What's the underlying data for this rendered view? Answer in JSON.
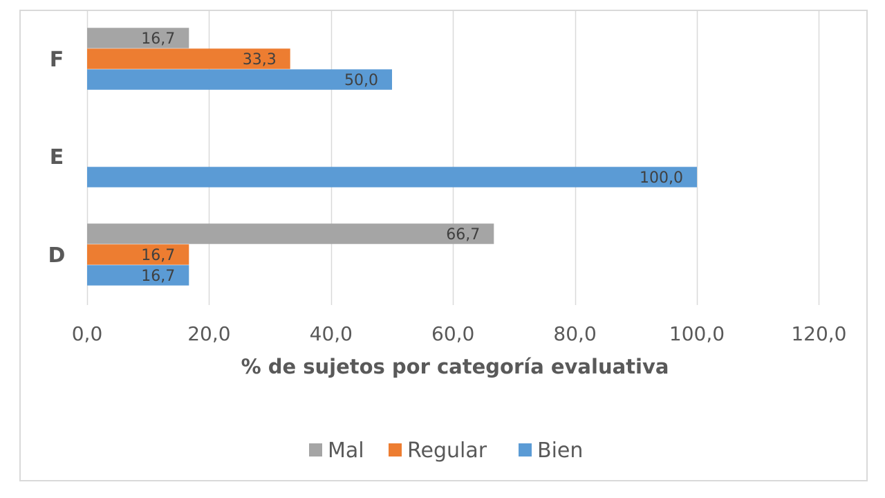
{
  "chart_data": {
    "type": "bar",
    "orientation": "horizontal",
    "categories": [
      "D",
      "E",
      "F"
    ],
    "series": [
      {
        "name": "Mal",
        "color": "#a5a5a5",
        "values": [
          66.7,
          null,
          16.7
        ],
        "labels": [
          "66,7",
          "",
          "16,7"
        ]
      },
      {
        "name": "Regular",
        "color": "#ed7d31",
        "values": [
          16.7,
          null,
          33.3
        ],
        "labels": [
          "16,7",
          "",
          "33,3"
        ]
      },
      {
        "name": "Bien",
        "color": "#5b9bd5",
        "values": [
          16.7,
          100.0,
          50.0
        ],
        "labels": [
          "16,7",
          "100,0",
          "50,0"
        ]
      }
    ],
    "xlabel": "% de sujetos por categoría evaluativa",
    "ylabel": "",
    "xlim": [
      0,
      120
    ],
    "xticks": [
      0,
      20,
      40,
      60,
      80,
      100,
      120
    ],
    "xtick_labels": [
      "0,0",
      "20,0",
      "40,0",
      "60,0",
      "80,0",
      "100,0",
      "120,0"
    ],
    "grid": true,
    "legend_position": "bottom",
    "legend_order": [
      "Mal",
      "Regular",
      "Bien"
    ]
  }
}
